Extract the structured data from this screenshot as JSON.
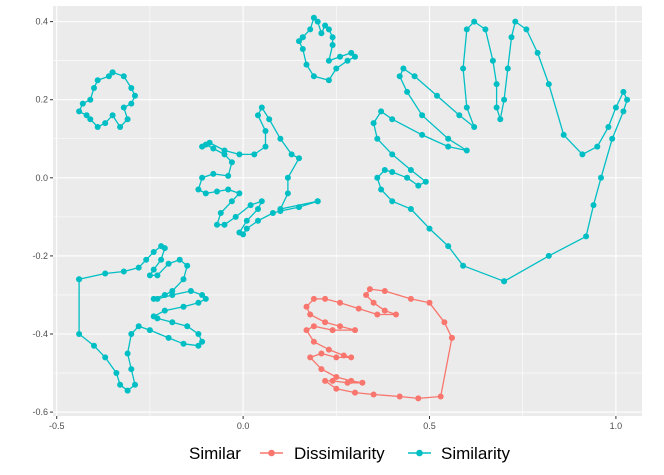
{
  "chart_data": {
    "type": "line",
    "xlim": [
      -0.51,
      1.07
    ],
    "ylim": [
      -0.61,
      0.44
    ],
    "x_ticks": [
      -0.5,
      0.0,
      0.5,
      1.0
    ],
    "x_tick_labels": [
      "-0.5",
      "0.0",
      "0.5",
      "1.0"
    ],
    "y_ticks": [
      -0.6,
      -0.4,
      -0.2,
      0.0,
      0.2,
      0.4
    ],
    "y_tick_labels": [
      "-0.6",
      "-0.4",
      "-0.2",
      "0.0",
      "0.2",
      "0.4"
    ],
    "grid": true,
    "legend": {
      "title": "Similar",
      "position": "bottom",
      "entries": [
        "Dissimilarity",
        "Similarity"
      ]
    },
    "colors": {
      "Dissimilarity": "#F8766D",
      "Similarity": "#00BFC4",
      "panel": "#EBEBEB",
      "grid": "#FFFFFF"
    },
    "series": [
      {
        "group": "Similarity",
        "points": [
          [
            0.7,
            -0.265
          ],
          [
            0.59,
            -0.225
          ],
          [
            0.55,
            -0.175
          ],
          [
            0.5,
            -0.13
          ],
          [
            0.45,
            -0.08
          ],
          [
            0.4,
            -0.06
          ],
          [
            0.37,
            -0.03
          ],
          [
            0.36,
            0.0
          ],
          [
            0.38,
            0.02
          ],
          [
            0.4,
            0.015
          ],
          [
            0.44,
            0.0
          ],
          [
            0.47,
            -0.02
          ],
          [
            0.49,
            -0.01
          ],
          [
            0.45,
            0.02
          ],
          [
            0.4,
            0.06
          ],
          [
            0.36,
            0.1
          ],
          [
            0.35,
            0.14
          ],
          [
            0.37,
            0.17
          ],
          [
            0.4,
            0.15
          ],
          [
            0.48,
            0.11
          ],
          [
            0.55,
            0.08
          ],
          [
            0.6,
            0.07
          ],
          [
            0.55,
            0.1
          ],
          [
            0.48,
            0.16
          ],
          [
            0.44,
            0.22
          ],
          [
            0.42,
            0.26
          ],
          [
            0.43,
            0.28
          ],
          [
            0.46,
            0.26
          ],
          [
            0.52,
            0.21
          ],
          [
            0.58,
            0.16
          ],
          [
            0.62,
            0.13
          ],
          [
            0.6,
            0.18
          ],
          [
            0.59,
            0.28
          ],
          [
            0.6,
            0.38
          ],
          [
            0.62,
            0.4
          ],
          [
            0.65,
            0.38
          ],
          [
            0.67,
            0.3
          ],
          [
            0.68,
            0.24
          ],
          [
            0.68,
            0.18
          ],
          [
            0.69,
            0.15
          ],
          [
            0.7,
            0.2
          ],
          [
            0.71,
            0.28
          ],
          [
            0.72,
            0.36
          ],
          [
            0.73,
            0.4
          ],
          [
            0.76,
            0.38
          ],
          [
            0.79,
            0.32
          ],
          [
            0.82,
            0.24
          ],
          [
            0.86,
            0.11
          ],
          [
            0.91,
            0.06
          ],
          [
            0.95,
            0.08
          ],
          [
            0.98,
            0.13
          ],
          [
            1.0,
            0.18
          ],
          [
            1.02,
            0.22
          ],
          [
            1.03,
            0.2
          ],
          [
            1.02,
            0.17
          ],
          [
            0.99,
            0.1
          ],
          [
            0.96,
            0.0
          ],
          [
            0.94,
            -0.07
          ],
          [
            0.92,
            -0.15
          ],
          [
            0.82,
            -0.2
          ],
          [
            0.7,
            -0.265
          ]
        ]
      },
      {
        "group": "Similarity",
        "points": [
          [
            0.2,
            -0.06
          ],
          [
            0.15,
            -0.075
          ],
          [
            0.1,
            -0.085
          ],
          [
            0.08,
            -0.09
          ],
          [
            0.04,
            -0.11
          ],
          [
            0.01,
            -0.13
          ],
          [
            0.0,
            -0.145
          ],
          [
            -0.01,
            -0.14
          ],
          [
            0.01,
            -0.11
          ],
          [
            0.04,
            -0.08
          ],
          [
            0.05,
            -0.06
          ],
          [
            0.02,
            -0.07
          ],
          [
            -0.02,
            -0.1
          ],
          [
            -0.05,
            -0.12
          ],
          [
            -0.07,
            -0.12
          ],
          [
            -0.06,
            -0.09
          ],
          [
            -0.03,
            -0.06
          ],
          [
            -0.01,
            -0.04
          ],
          [
            -0.04,
            -0.03
          ],
          [
            -0.07,
            -0.035
          ],
          [
            -0.1,
            -0.04
          ],
          [
            -0.12,
            -0.03
          ],
          [
            -0.11,
            0.0
          ],
          [
            -0.08,
            0.01
          ],
          [
            -0.04,
            0.005
          ],
          [
            -0.03,
            0.04
          ],
          [
            -0.05,
            0.06
          ],
          [
            -0.08,
            0.075
          ],
          [
            -0.1,
            0.085
          ],
          [
            -0.11,
            0.08
          ],
          [
            -0.09,
            0.09
          ],
          [
            -0.05,
            0.07
          ],
          [
            -0.01,
            0.06
          ],
          [
            0.03,
            0.06
          ],
          [
            0.06,
            0.08
          ],
          [
            0.06,
            0.12
          ],
          [
            0.04,
            0.16
          ],
          [
            0.05,
            0.18
          ],
          [
            0.07,
            0.15
          ],
          [
            0.1,
            0.1
          ],
          [
            0.13,
            0.06
          ],
          [
            0.15,
            0.05
          ],
          [
            0.12,
            0.0
          ],
          [
            0.12,
            -0.04
          ],
          [
            0.1,
            -0.08
          ],
          [
            0.2,
            -0.06
          ]
        ]
      },
      {
        "group": "Similarity",
        "points": [
          [
            -0.44,
            -0.26
          ],
          [
            -0.37,
            -0.245
          ],
          [
            -0.32,
            -0.24
          ],
          [
            -0.28,
            -0.23
          ],
          [
            -0.26,
            -0.21
          ],
          [
            -0.24,
            -0.19
          ],
          [
            -0.22,
            -0.175
          ],
          [
            -0.21,
            -0.18
          ],
          [
            -0.22,
            -0.21
          ],
          [
            -0.24,
            -0.235
          ],
          [
            -0.25,
            -0.25
          ],
          [
            -0.23,
            -0.25
          ],
          [
            -0.2,
            -0.22
          ],
          [
            -0.17,
            -0.21
          ],
          [
            -0.15,
            -0.225
          ],
          [
            -0.16,
            -0.26
          ],
          [
            -0.19,
            -0.29
          ],
          [
            -0.21,
            -0.3
          ],
          [
            -0.24,
            -0.31
          ],
          [
            -0.23,
            -0.31
          ],
          [
            -0.19,
            -0.3
          ],
          [
            -0.14,
            -0.29
          ],
          [
            -0.11,
            -0.3
          ],
          [
            -0.1,
            -0.31
          ],
          [
            -0.12,
            -0.32
          ],
          [
            -0.16,
            -0.33
          ],
          [
            -0.21,
            -0.34
          ],
          [
            -0.24,
            -0.355
          ],
          [
            -0.23,
            -0.36
          ],
          [
            -0.19,
            -0.37
          ],
          [
            -0.15,
            -0.38
          ],
          [
            -0.12,
            -0.4
          ],
          [
            -0.11,
            -0.42
          ],
          [
            -0.12,
            -0.43
          ],
          [
            -0.16,
            -0.425
          ],
          [
            -0.2,
            -0.41
          ],
          [
            -0.25,
            -0.39
          ],
          [
            -0.28,
            -0.38
          ],
          [
            -0.3,
            -0.4
          ],
          [
            -0.31,
            -0.45
          ],
          [
            -0.3,
            -0.49
          ],
          [
            -0.29,
            -0.53
          ],
          [
            -0.31,
            -0.545
          ],
          [
            -0.33,
            -0.53
          ],
          [
            -0.34,
            -0.5
          ],
          [
            -0.37,
            -0.46
          ],
          [
            -0.4,
            -0.43
          ],
          [
            -0.44,
            -0.4
          ],
          [
            -0.44,
            -0.26
          ]
        ]
      },
      {
        "group": "Similarity",
        "points": [
          [
            0.16,
            0.36
          ],
          [
            0.18,
            0.38
          ],
          [
            0.19,
            0.41
          ],
          [
            0.2,
            0.4
          ],
          [
            0.21,
            0.37
          ],
          [
            0.22,
            0.39
          ],
          [
            0.23,
            0.38
          ],
          [
            0.24,
            0.36
          ],
          [
            0.24,
            0.34
          ],
          [
            0.23,
            0.3
          ],
          [
            0.26,
            0.31
          ],
          [
            0.29,
            0.32
          ],
          [
            0.3,
            0.31
          ],
          [
            0.28,
            0.3
          ],
          [
            0.25,
            0.28
          ],
          [
            0.23,
            0.25
          ],
          [
            0.19,
            0.26
          ],
          [
            0.17,
            0.29
          ],
          [
            0.16,
            0.33
          ],
          [
            0.15,
            0.35
          ],
          [
            0.16,
            0.36
          ]
        ]
      },
      {
        "group": "Similarity",
        "points": [
          [
            -0.35,
            0.27
          ],
          [
            -0.32,
            0.26
          ],
          [
            -0.3,
            0.23
          ],
          [
            -0.29,
            0.21
          ],
          [
            -0.3,
            0.19
          ],
          [
            -0.32,
            0.18
          ],
          [
            -0.31,
            0.15
          ],
          [
            -0.33,
            0.13
          ],
          [
            -0.35,
            0.16
          ],
          [
            -0.37,
            0.14
          ],
          [
            -0.39,
            0.13
          ],
          [
            -0.41,
            0.15
          ],
          [
            -0.42,
            0.16
          ],
          [
            -0.44,
            0.17
          ],
          [
            -0.43,
            0.19
          ],
          [
            -0.41,
            0.2
          ],
          [
            -0.4,
            0.23
          ],
          [
            -0.39,
            0.25
          ],
          [
            -0.36,
            0.26
          ],
          [
            -0.35,
            0.27
          ]
        ]
      },
      {
        "group": "Dissimilarity",
        "points": [
          [
            0.56,
            -0.41
          ],
          [
            0.54,
            -0.37
          ],
          [
            0.5,
            -0.32
          ],
          [
            0.45,
            -0.31
          ],
          [
            0.38,
            -0.29
          ],
          [
            0.34,
            -0.285
          ],
          [
            0.33,
            -0.3
          ],
          [
            0.35,
            -0.32
          ],
          [
            0.38,
            -0.34
          ],
          [
            0.41,
            -0.35
          ],
          [
            0.36,
            -0.35
          ],
          [
            0.31,
            -0.335
          ],
          [
            0.26,
            -0.32
          ],
          [
            0.22,
            -0.31
          ],
          [
            0.19,
            -0.31
          ],
          [
            0.17,
            -0.33
          ],
          [
            0.18,
            -0.35
          ],
          [
            0.22,
            -0.37
          ],
          [
            0.26,
            -0.38
          ],
          [
            0.3,
            -0.39
          ],
          [
            0.24,
            -0.39
          ],
          [
            0.19,
            -0.38
          ],
          [
            0.17,
            -0.39
          ],
          [
            0.19,
            -0.42
          ],
          [
            0.23,
            -0.44
          ],
          [
            0.27,
            -0.455
          ],
          [
            0.29,
            -0.46
          ],
          [
            0.25,
            -0.46
          ],
          [
            0.21,
            -0.45
          ],
          [
            0.18,
            -0.46
          ],
          [
            0.21,
            -0.49
          ],
          [
            0.25,
            -0.51
          ],
          [
            0.29,
            -0.52
          ],
          [
            0.32,
            -0.525
          ],
          [
            0.28,
            -0.525
          ],
          [
            0.24,
            -0.52
          ],
          [
            0.22,
            -0.52
          ],
          [
            0.25,
            -0.54
          ],
          [
            0.3,
            -0.55
          ],
          [
            0.35,
            -0.555
          ],
          [
            0.42,
            -0.56
          ],
          [
            0.47,
            -0.565
          ],
          [
            0.53,
            -0.56
          ],
          [
            0.56,
            -0.41
          ]
        ]
      }
    ]
  }
}
